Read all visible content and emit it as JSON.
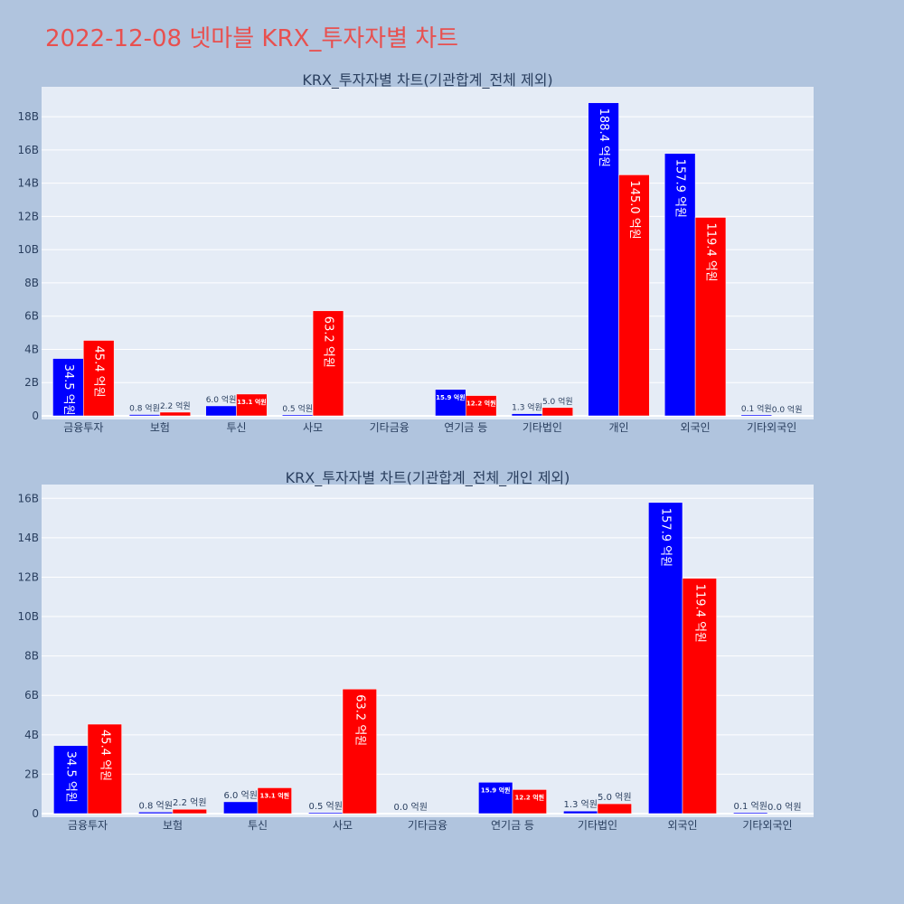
{
  "title": "2022-12-08 넷마블 KRX_투자자별 차트",
  "colors": {
    "buy": "#0000ff",
    "sell": "#ff0000",
    "plot_bg": "#e5ecf6",
    "page_bg": "#b0c4de",
    "title": "#e8504f"
  },
  "chart_data": [
    {
      "type": "bar",
      "title": "KRX_투자자별 차트(기관합계_전체 제외)",
      "categories": [
        "금융투자",
        "보험",
        "투신",
        "사모",
        "기타금융",
        "연기금 등",
        "기타법인",
        "개인",
        "외국인",
        "기타외국인"
      ],
      "series": [
        {
          "values": [
            3.45,
            0.08,
            0.6,
            0.05,
            0.0,
            1.59,
            0.13,
            18.84,
            15.79,
            0.01
          ],
          "labels": [
            "34.5 억원",
            "0.8 억원",
            "6.0 억원",
            "0.5 억원",
            "",
            "15.9 억원",
            "1.3 억원",
            "188.4 억원",
            "157.9 억원",
            "0.1 억원"
          ]
        },
        {
          "values": [
            4.54,
            0.22,
            1.31,
            6.32,
            0.0,
            1.22,
            0.5,
            14.5,
            11.94,
            0.0
          ],
          "labels": [
            "45.4 억원",
            "2.2 억원",
            "13.1 억원",
            "63.2 억원",
            "",
            "12.2 억원",
            "5.0 억원",
            "145.0 억원",
            "119.4 억원",
            "0.0 억원"
          ]
        }
      ],
      "yticks": [
        "0",
        "2B",
        "4B",
        "6B",
        "8B",
        "10B",
        "12B",
        "14B",
        "16B",
        "18B"
      ],
      "ylim": [
        0,
        19.8
      ],
      "grid": true
    },
    {
      "type": "bar",
      "title": "KRX_투자자별 차트(기관합계_전체_개인 제외)",
      "categories": [
        "금융투자",
        "보험",
        "투신",
        "사모",
        "기타금융",
        "연기금 등",
        "기타법인",
        "외국인",
        "기타외국인"
      ],
      "series": [
        {
          "values": [
            3.45,
            0.08,
            0.6,
            0.05,
            0.0,
            1.59,
            0.13,
            15.79,
            0.01
          ],
          "labels": [
            "34.5 억원",
            "0.8 억원",
            "6.0 억원",
            "0.5 억원",
            "0.0 억원",
            "15.9 억원",
            "1.3 억원",
            "157.9 억원",
            "0.1 억원"
          ]
        },
        {
          "values": [
            4.54,
            0.22,
            1.31,
            6.32,
            0.0,
            1.22,
            0.5,
            11.94,
            0.0
          ],
          "labels": [
            "45.4 억원",
            "2.2 억원",
            "13.1 억원",
            "63.2 억원",
            "",
            "12.2 억원",
            "5.0 억원",
            "119.4 억원",
            "0.0 억원"
          ]
        }
      ],
      "yticks": [
        "0",
        "2B",
        "4B",
        "6B",
        "8B",
        "10B",
        "12B",
        "14B",
        "16B"
      ],
      "ylim": [
        0,
        16.7
      ],
      "grid": true
    }
  ]
}
